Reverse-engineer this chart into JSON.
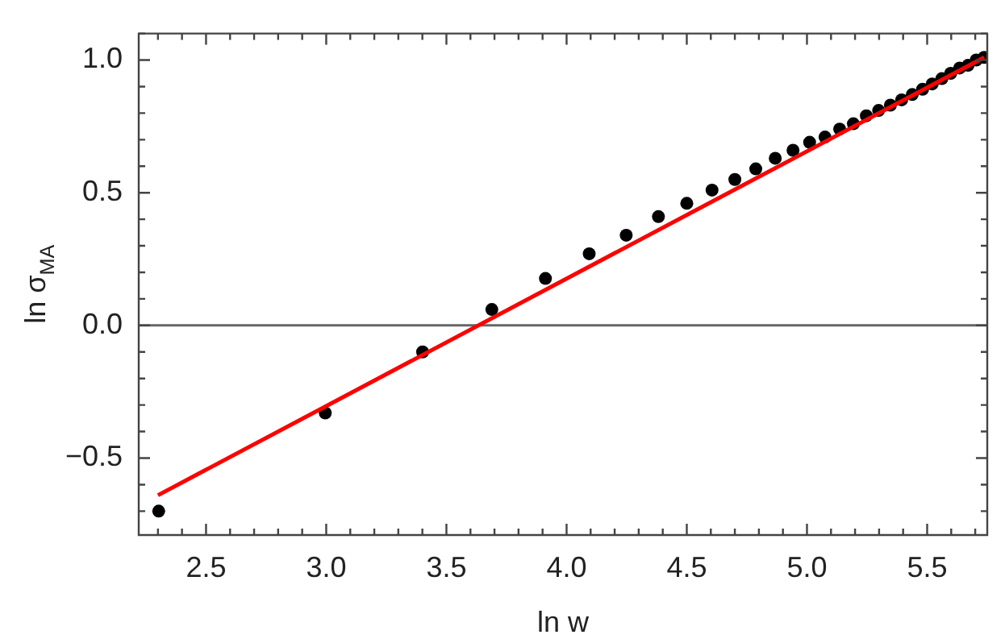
{
  "chart_data": {
    "type": "scatter",
    "xlabel": "ln w",
    "ylabel": "ln σ$_{MA}$",
    "xlim": [
      2.22,
      5.75
    ],
    "ylim": [
      -0.79,
      1.1
    ],
    "xticks": [
      2.5,
      {
        "value": 3,
        "label": "3.0"
      },
      3.5,
      {
        "value": 4,
        "label": "4.0"
      },
      4.5,
      {
        "value": 5,
        "label": "5.0"
      },
      5.5
    ],
    "yticks": [
      {
        "value": -0.5,
        "label": "−0.5"
      },
      {
        "value": 0,
        "label": "0.0"
      },
      0.5,
      {
        "value": 1,
        "label": "1.0"
      }
    ],
    "grid": false,
    "legend": false,
    "marker": "circle",
    "ref_lines": [
      {
        "axis": "y",
        "value": 0,
        "color": "#666666"
      }
    ],
    "series": [
      {
        "color": "#000000",
        "x": [
          2.303,
          2.996,
          3.401,
          3.689,
          3.912,
          4.094,
          4.248,
          4.382,
          4.5,
          4.605,
          4.7,
          4.787,
          4.868,
          4.942,
          5.011,
          5.075,
          5.136,
          5.193,
          5.247,
          5.298,
          5.347,
          5.394,
          5.438,
          5.481,
          5.521,
          5.561,
          5.598,
          5.635,
          5.67,
          5.704,
          5.737
        ],
        "values": [
          -0.7,
          -0.33,
          -0.1,
          0.06,
          0.177,
          0.27,
          0.34,
          0.41,
          0.46,
          0.51,
          0.55,
          0.59,
          0.63,
          0.66,
          0.69,
          0.71,
          0.74,
          0.76,
          0.79,
          0.81,
          0.83,
          0.85,
          0.87,
          0.89,
          0.91,
          0.93,
          0.95,
          0.97,
          0.98,
          1.0,
          1.01
        ]
      },
      {
        "type": "line",
        "color": "#ff0000",
        "marker": "none",
        "line_style": "solid",
        "x": [
          2.3,
          5.737
        ],
        "values": [
          -0.64,
          1.01
        ]
      }
    ]
  }
}
